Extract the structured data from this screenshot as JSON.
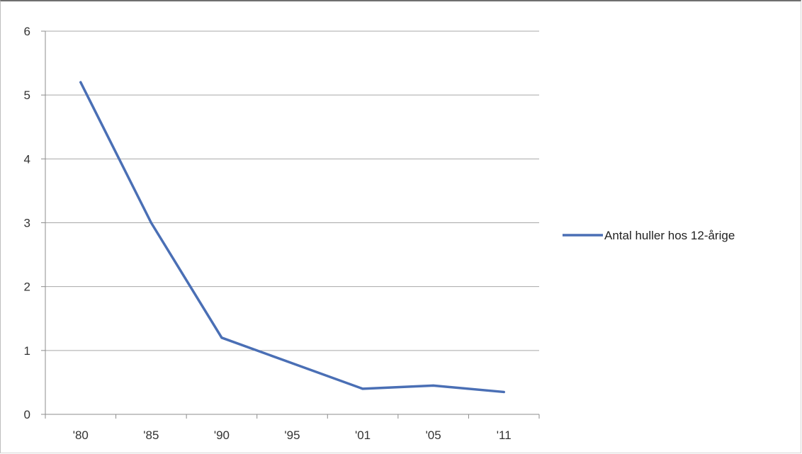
{
  "chart_data": {
    "type": "line",
    "categories": [
      "'80",
      "'85",
      "'90",
      "'95",
      "'01",
      "'05",
      "'11"
    ],
    "series": [
      {
        "name": "Antal huller hos 12-årige",
        "color": "#4a6fb5",
        "values": [
          5.2,
          3.0,
          1.2,
          0.8,
          0.4,
          0.45,
          0.35
        ]
      }
    ],
    "ylim": [
      0,
      6
    ],
    "yticks": [
      "0",
      "1",
      "2",
      "3",
      "4",
      "5",
      "6"
    ],
    "grid": true,
    "legend": "right",
    "title": "",
    "xlabel": "",
    "ylabel": ""
  }
}
